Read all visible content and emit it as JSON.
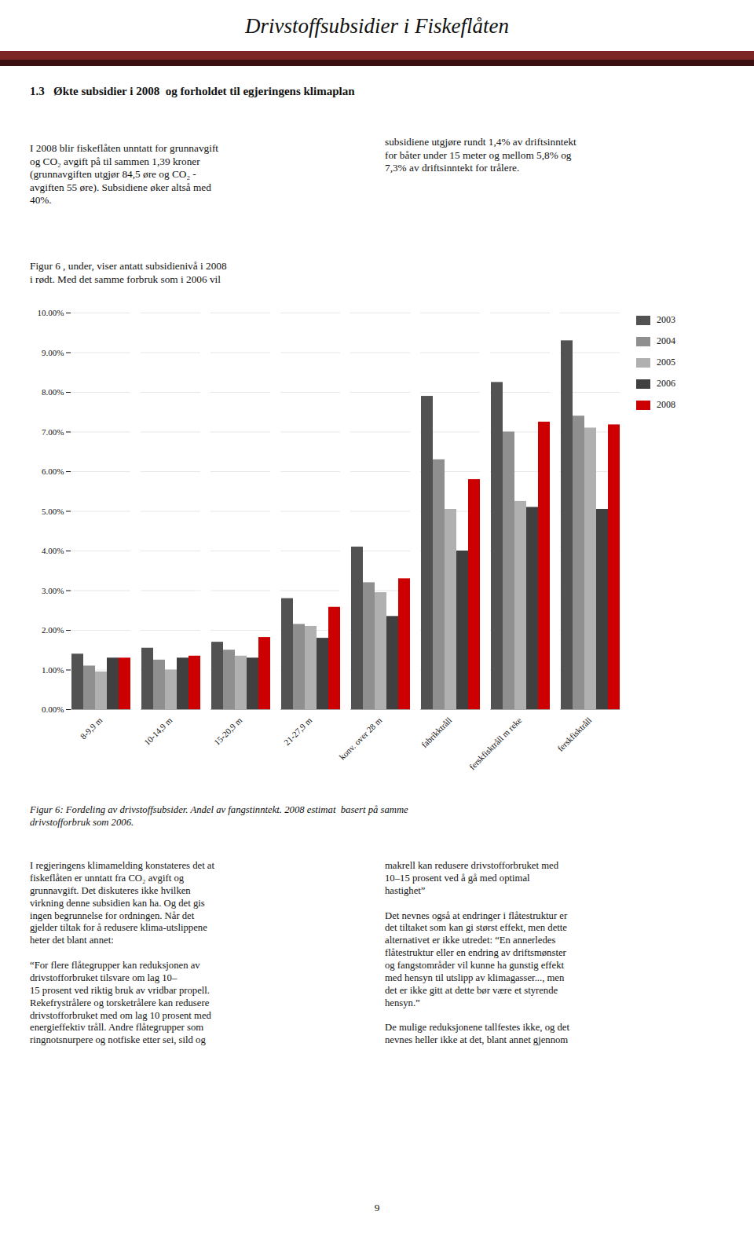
{
  "chart_data": {
    "type": "bar",
    "title": "Drivstoffsubsidier i Fiskeflåten",
    "caption": "Figur 6: Fordeling av drivstoffsubsider. Andel av fangstinntekt. 2008 estimat  basert på samme\ndrivstofforbruk som 2006.",
    "annotations": [
      "1.3   Økte subsidier i 2008  og forholdet til egjeringens klimaplan",
      "I 2008 blir fiskeflåten unntatt for grunnavgift\nog CO₂ avgift på til sammen 1,39 kroner\n(grunnavgiften utgjør 84,5 øre og CO₂ -\navgiften 55 øre). Subsidiene øker altså med\n40%.",
      "subsidiene utgjøre rundt 1,4% av driftsinntekt\nfor båter under 15 meter og mellom 5,8% og\n7,3% av driftsinntekt for trålere.",
      "Figur 6 , under, viser antatt subsidienivå i 2008\ni rødt. Med det samme forbruk som i 2006 vil",
      "I regjeringens klimamelding konstateres det at\nfiskeflåten er unntatt fra CO₂ avgift og\ngrunnavgift. Det diskuteres ikke hvilken\nvirkning denne subsidien kan ha. Og det gis\ningen begrunnelse for ordningen. Når det\ngjelder tiltak for å redusere klima-utslippene\nheter det blant annet:\n\n“For flere flåtegrupper kan reduksjonen av\ndrivstofforbruket tilsvare om lag 10–\n15 prosent ved riktig bruk av vridbar propell.\nRekefrystrålere og torsketrålere kan redusere\ndrivstofforbruket med om lag 10 prosent med\nenergieffektiv tråll. Andre flåtegrupper som\nringnotsnurpere og notfiske etter sei, sild og",
      "makrell kan redusere drivstofforbruket med\n10–15 prosent ved å gå med optimal\nhastighet”\n\nDet nevnes også at endringer i flåtestruktur er\ndet tiltaket som kan gi størst effekt, men dette\nalternativet er ikke utredet: “En annerledes\nflåtestruktur eller en endring av driftsmønster\nog fangstområder vil kunne ha gunstig effekt\nmed hensyn til utslipp av klimagasser..., men\ndet er ikke gitt at dette bør være et styrende\nhensyn.”\n\nDe mulige reduksjonene tallfestes ikke, og det\nnevnes heller ikke at det, blant annet gjennom",
      "9"
    ],
    "categories": [
      "8-9,9 m",
      "10-14,9 m",
      "15-20,9 m",
      "21-27,9 m",
      "konv. over 28 m",
      "fabrikktråll",
      "ferskfisktråll m reke",
      "ferskfisktråll"
    ],
    "series": [
      {
        "name": "2003",
        "color": "#525252",
        "values": [
          0.014,
          0.0155,
          0.017,
          0.028,
          0.041,
          0.079,
          0.0825,
          0.093
        ]
      },
      {
        "name": "2004",
        "color": "#8f8f8f",
        "values": [
          0.011,
          0.0125,
          0.015,
          0.0215,
          0.032,
          0.063,
          0.07,
          0.074
        ]
      },
      {
        "name": "2005",
        "color": "#b0b0b0",
        "values": [
          0.0095,
          0.01,
          0.0135,
          0.021,
          0.0295,
          0.0505,
          0.0525,
          0.071
        ]
      },
      {
        "name": "2006",
        "color": "#404040",
        "values": [
          0.013,
          0.013,
          0.013,
          0.018,
          0.0235,
          0.04,
          0.051,
          0.0505
        ]
      },
      {
        "name": "2008",
        "color": "#cc0000",
        "values": [
          0.013,
          0.0135,
          0.0182,
          0.0258,
          0.033,
          0.058,
          0.0725,
          0.0718
        ]
      }
    ],
    "ylim": [
      0,
      0.1
    ],
    "yticks": [
      {
        "value": 0,
        "label": "0.00%"
      },
      {
        "value": 0.01,
        "label": "1.00%"
      },
      {
        "value": 0.02,
        "label": "2.00%"
      },
      {
        "value": 0.03,
        "label": "3.00%"
      },
      {
        "value": 0.04,
        "label": "4.00%"
      },
      {
        "value": 0.05,
        "label": "5.00%"
      },
      {
        "value": 0.06,
        "label": "6.00%"
      },
      {
        "value": 0.07,
        "label": "7.00%"
      },
      {
        "value": 0.08,
        "label": "8.00%"
      },
      {
        "value": 0.09,
        "label": "9.00%"
      },
      {
        "value": 0.1,
        "label": "10.00%"
      }
    ],
    "grid": true,
    "legend": "right"
  }
}
